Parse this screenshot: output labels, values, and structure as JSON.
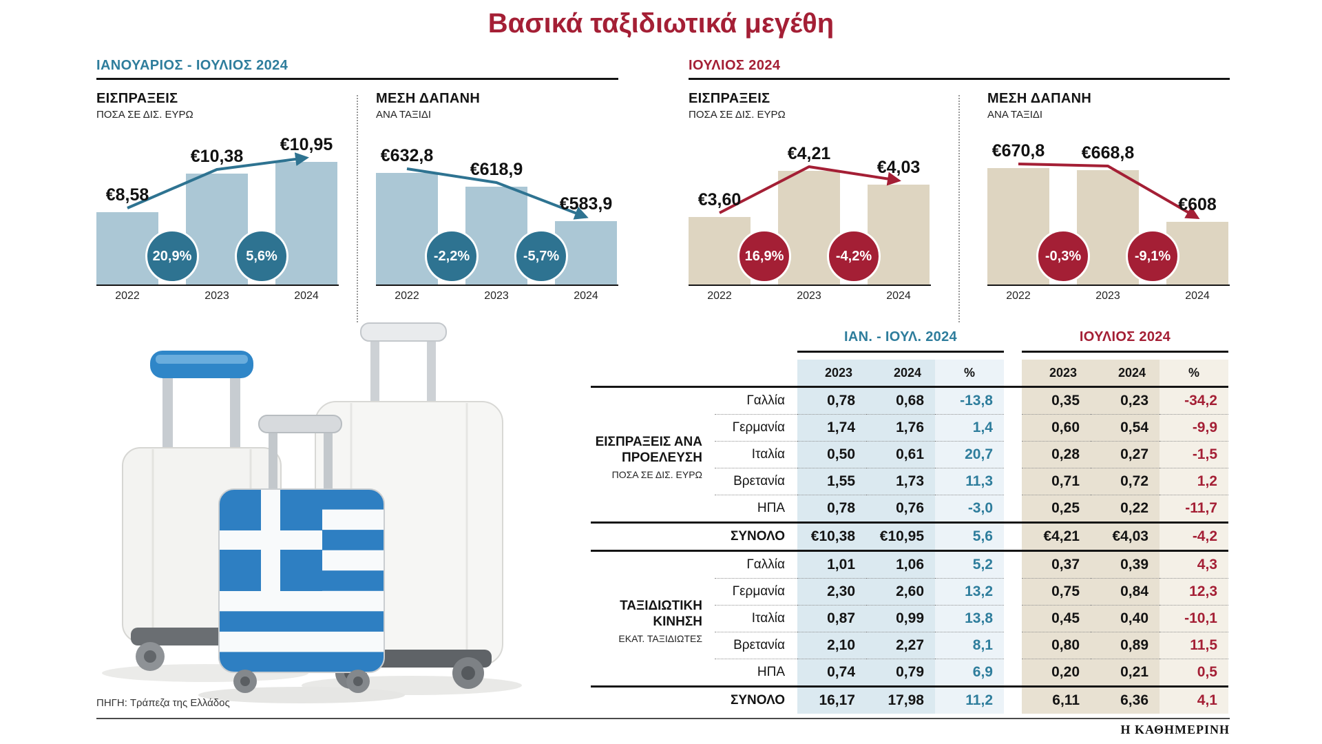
{
  "title": "Βασικά ταξιδιωτικά μεγέθη",
  "source": "ΠΗΓΗ: Τράπεζα της Ελλάδος",
  "brand": "Η ΚΑΘΗΜΕΡΙΝΗ",
  "sections": [
    {
      "label": "ΙΑΝΟΥΑΡΙΟΣ - ΙΟΥΛΙΟΣ 2024"
    },
    {
      "label": "ΙΟΥΛΙΟΣ 2024"
    }
  ],
  "chart_data": [
    {
      "type": "bar",
      "section": "ΙΑΝΟΥΑΡΙΟΣ - ΙΟΥΛΙΟΣ 2024",
      "title": "ΕΙΣΠΡΑΞΕΙΣ",
      "subtitle": "ΠΟΣΑ ΣΕ ΔΙΣ. ΕΥΡΩ",
      "categories": [
        "2022",
        "2023",
        "2024"
      ],
      "values": [
        8.58,
        10.38,
        10.95
      ],
      "value_labels": [
        "€8,58",
        "€10,38",
        "€10,95"
      ],
      "change_badges": [
        "20,9%",
        "5,6%"
      ],
      "ylim": [
        5.2,
        11.0
      ],
      "theme": "blue"
    },
    {
      "type": "bar",
      "section": "ΙΑΝΟΥΑΡΙΟΣ - ΙΟΥΛΙΟΣ 2024",
      "title": "ΜΕΣΗ ΔΑΠΑΝΗ",
      "subtitle": "ΑΝΑ ΤΑΞΙΔΙ",
      "categories": [
        "2022",
        "2023",
        "2024"
      ],
      "values": [
        632.8,
        618.9,
        583.9
      ],
      "value_labels": [
        "€632,8",
        "€618,9",
        "€583,9"
      ],
      "change_badges": [
        "-2,2%",
        "-5,7%"
      ],
      "ylim": [
        520,
        645
      ],
      "theme": "blue"
    },
    {
      "type": "bar",
      "section": "ΙΟΥΛΙΟΣ 2024",
      "title": "ΕΙΣΠΡΑΞΕΙΣ",
      "subtitle": "ΠΟΣΑ ΣΕ ΔΙΣ. ΕΥΡΩ",
      "categories": [
        "2022",
        "2023",
        "2024"
      ],
      "values": [
        3.6,
        4.21,
        4.03
      ],
      "value_labels": [
        "€3,60",
        "€4,21",
        "€4,03"
      ],
      "change_badges": [
        "16,9%",
        "-4,2%"
      ],
      "ylim": [
        2.7,
        4.35
      ],
      "theme": "red"
    },
    {
      "type": "bar",
      "section": "ΙΟΥΛΙΟΣ 2024",
      "title": "ΜΕΣΗ ΔΑΠΑΝΗ",
      "subtitle": "ΑΝΑ ΤΑΞΙΔΙ",
      "categories": [
        "2022",
        "2023",
        "2024"
      ],
      "values": [
        670.8,
        668.8,
        608
      ],
      "value_labels": [
        "€670,8",
        "€668,8",
        "€608"
      ],
      "change_badges": [
        "-0,3%",
        "-9,1%"
      ],
      "ylim": [
        535,
        680
      ],
      "theme": "red"
    }
  ],
  "table": {
    "group_headers": [
      {
        "label": "ΙΑΝ. - ΙΟΥΛ. 2024",
        "theme": "blue"
      },
      {
        "label": "ΙΟΥΛΙΟΣ 2024",
        "theme": "red"
      }
    ],
    "columns": [
      "2023",
      "2024",
      "%"
    ],
    "row_groups": [
      {
        "title": "ΕΙΣΠΡΑΞΕΙΣ ΑΝΑ ΠΡΟΕΛΕΥΣΗ",
        "subtitle": "ΠΟΣΑ ΣΕ ΔΙΣ. ΕΥΡΩ",
        "rows": [
          {
            "label": "Γαλλία",
            "jan_jul": [
              "0,78",
              "0,68",
              "-13,8"
            ],
            "jul": [
              "0,35",
              "0,23",
              "-34,2"
            ]
          },
          {
            "label": "Γερμανία",
            "jan_jul": [
              "1,74",
              "1,76",
              "1,4"
            ],
            "jul": [
              "0,60",
              "0,54",
              "-9,9"
            ]
          },
          {
            "label": "Ιταλία",
            "jan_jul": [
              "0,50",
              "0,61",
              "20,7"
            ],
            "jul": [
              "0,28",
              "0,27",
              "-1,5"
            ]
          },
          {
            "label": "Βρετανία",
            "jan_jul": [
              "1,55",
              "1,73",
              "11,3"
            ],
            "jul": [
              "0,71",
              "0,72",
              "1,2"
            ]
          },
          {
            "label": "ΗΠΑ",
            "jan_jul": [
              "0,78",
              "0,76",
              "-3,0"
            ],
            "jul": [
              "0,25",
              "0,22",
              "-11,7"
            ]
          }
        ],
        "total": {
          "label": "ΣΥΝΟΛΟ",
          "jan_jul": [
            "€10,38",
            "€10,95",
            "5,6"
          ],
          "jul": [
            "€4,21",
            "€4,03",
            "-4,2"
          ]
        }
      },
      {
        "title": "ΤΑΞΙΔΙΩΤΙΚΗ ΚΙΝΗΣΗ",
        "subtitle": "ΕΚΑΤ. ΤΑΞΙΔΙΩΤΕΣ",
        "rows": [
          {
            "label": "Γαλλία",
            "jan_jul": [
              "1,01",
              "1,06",
              "5,2"
            ],
            "jul": [
              "0,37",
              "0,39",
              "4,3"
            ]
          },
          {
            "label": "Γερμανία",
            "jan_jul": [
              "2,30",
              "2,60",
              "13,2"
            ],
            "jul": [
              "0,75",
              "0,84",
              "12,3"
            ]
          },
          {
            "label": "Ιταλία",
            "jan_jul": [
              "0,87",
              "0,99",
              "13,8"
            ],
            "jul": [
              "0,45",
              "0,40",
              "-10,1"
            ]
          },
          {
            "label": "Βρετανία",
            "jan_jul": [
              "2,10",
              "2,27",
              "8,1"
            ],
            "jul": [
              "0,80",
              "0,89",
              "11,5"
            ]
          },
          {
            "label": "ΗΠΑ",
            "jan_jul": [
              "0,74",
              "0,79",
              "6,9"
            ],
            "jul": [
              "0,20",
              "0,21",
              "0,5"
            ]
          }
        ],
        "total": {
          "label": "ΣΥΝΟΛΟ",
          "jan_jul": [
            "16,17",
            "17,98",
            "11,2"
          ],
          "jul": [
            "6,11",
            "6,36",
            "4,1"
          ]
        }
      }
    ]
  },
  "colors": {
    "title_red": "#a41f35",
    "blue_text": "#2e7d9c",
    "blue_bar": "#abc7d5",
    "blue_badge": "#2e7391",
    "red_badge": "#a41f35",
    "beige_bar": "#ded5c1",
    "table_blue_bg": "#dbe9f0",
    "table_blue_pct_bg": "#ecf3f8",
    "table_beige_bg": "#e8e1d2",
    "table_beige_pct_bg": "#f4f0e7",
    "greek_flag_blue": "#2e7fc2"
  }
}
